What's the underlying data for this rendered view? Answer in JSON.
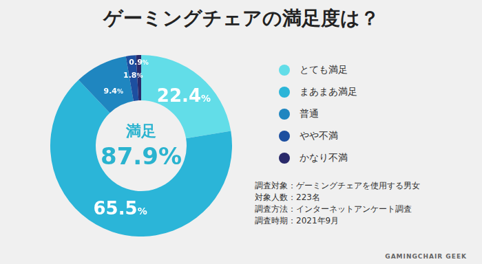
{
  "chart_data": {
    "type": "doughnut",
    "title": "ゲーミングチェアの満足度は？",
    "categories": [
      "とても満足",
      "まあまあ満足",
      "普通",
      "やや不満",
      "かなり不満"
    ],
    "values": [
      22.4,
      65.5,
      9.4,
      1.8,
      0.9
    ],
    "value_labels": [
      "22.4%",
      "65.5%",
      "9.4%",
      "1.8%",
      "0.9%"
    ],
    "colors": [
      "#62dde8",
      "#2bb5d8",
      "#1f86c0",
      "#1d4fa0",
      "#2a2a6a"
    ],
    "data_labels": true,
    "legend": "right",
    "center_text": [
      "満足",
      "87.9%"
    ],
    "notes": [
      "調査対象：ゲーミングチェアを使用する男女",
      "対象人数：223名",
      "調査方法：インターネットアンケート調査",
      "調査時期：2021年9月"
    ],
    "source": "GAMINGCHAIR GEEK"
  }
}
